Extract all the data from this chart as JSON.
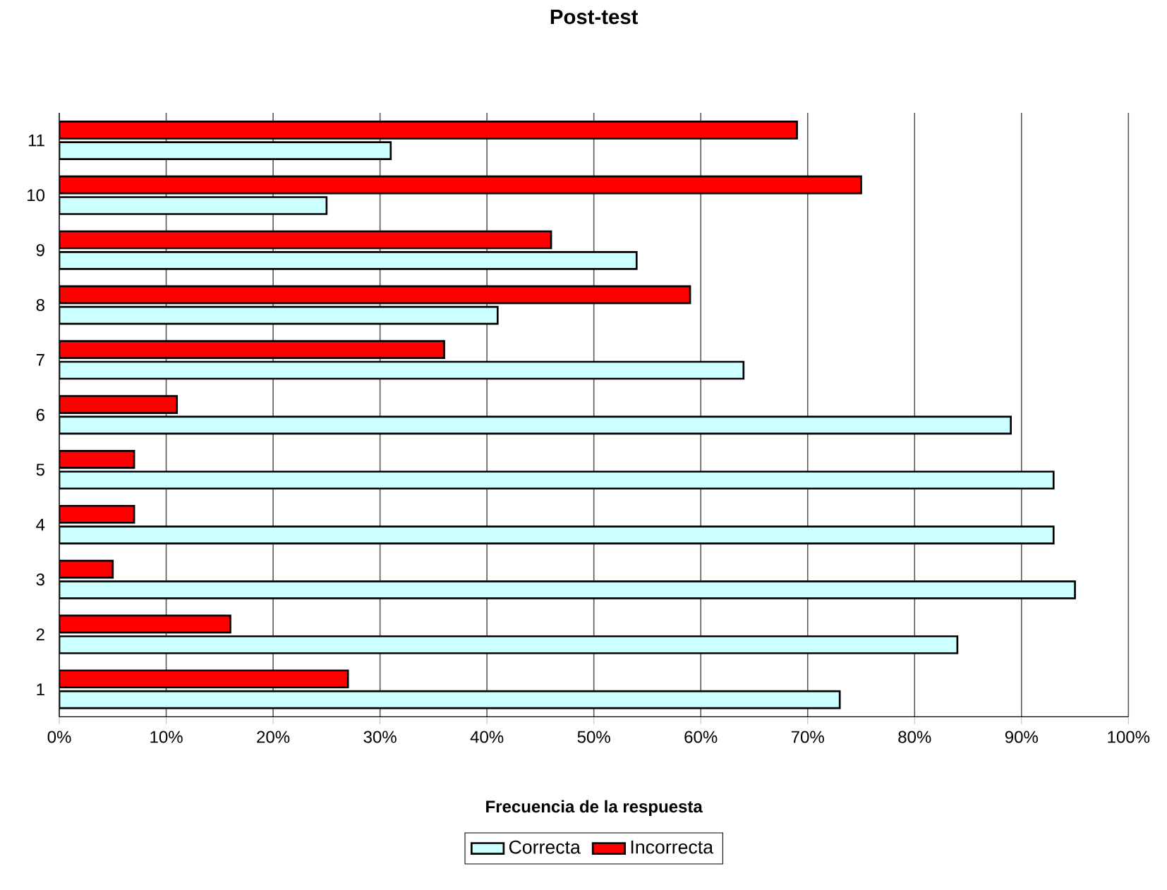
{
  "chart_data": {
    "type": "bar",
    "orientation": "horizontal",
    "title": "Post-test",
    "xlabel": "Frecuencia de la respuesta",
    "categories": [
      "11",
      "10",
      "9",
      "8",
      "7",
      "6",
      "5",
      "4",
      "3",
      "2",
      "1"
    ],
    "series": [
      {
        "name": "Correcta",
        "color": "#ccffff",
        "values": [
          31,
          25,
          54,
          41,
          64,
          89,
          93,
          93,
          95,
          84,
          73
        ]
      },
      {
        "name": "Incorrecta",
        "color": "#ff0000",
        "values": [
          69,
          75,
          46,
          59,
          36,
          11,
          7,
          7,
          5,
          16,
          27
        ]
      }
    ],
    "xlim": [
      0,
      100
    ],
    "xticks": [
      {
        "value": 0,
        "label": "0%"
      },
      {
        "value": 10,
        "label": "10%"
      },
      {
        "value": 20,
        "label": "20%"
      },
      {
        "value": 30,
        "label": "30%"
      },
      {
        "value": 40,
        "label": "40%"
      },
      {
        "value": 50,
        "label": "50%"
      },
      {
        "value": 60,
        "label": "60%"
      },
      {
        "value": 70,
        "label": "70%"
      },
      {
        "value": 80,
        "label": "80%"
      },
      {
        "value": 90,
        "label": "90%"
      },
      {
        "value": 100,
        "label": "100%"
      }
    ],
    "grid": "x",
    "legend": "bottom"
  }
}
